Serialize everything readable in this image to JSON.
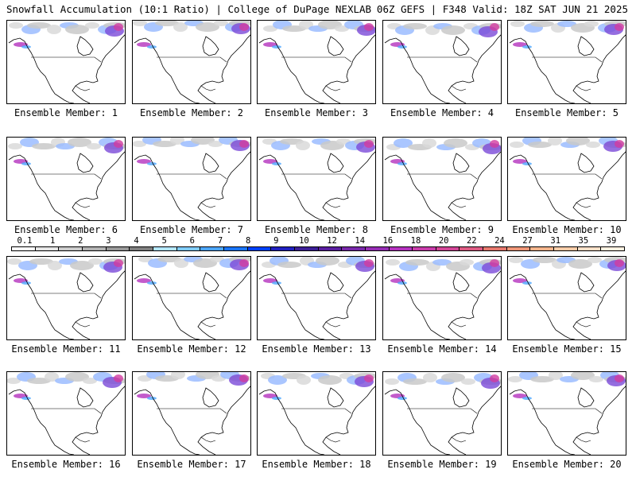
{
  "header": {
    "left": "Snowfall Accumulation (10:1 Ratio) | College of DuPage NEXLAB",
    "right": "06Z GEFS | F348 Valid: 18Z SAT JUN 21 2025"
  },
  "panels": [
    {
      "label": "Ensemble Member: 1"
    },
    {
      "label": "Ensemble Member: 2"
    },
    {
      "label": "Ensemble Member: 3"
    },
    {
      "label": "Ensemble Member: 4"
    },
    {
      "label": "Ensemble Member: 5"
    },
    {
      "label": "Ensemble Member: 6"
    },
    {
      "label": "Ensemble Member: 7"
    },
    {
      "label": "Ensemble Member: 8"
    },
    {
      "label": "Ensemble Member: 9"
    },
    {
      "label": "Ensemble Member: 10"
    },
    {
      "label": "Ensemble Member: 11"
    },
    {
      "label": "Ensemble Member: 12"
    },
    {
      "label": "Ensemble Member: 13"
    },
    {
      "label": "Ensemble Member: 14"
    },
    {
      "label": "Ensemble Member: 15"
    },
    {
      "label": "Ensemble Member: 16"
    },
    {
      "label": "Ensemble Member: 17"
    },
    {
      "label": "Ensemble Member: 18"
    },
    {
      "label": "Ensemble Member: 19"
    },
    {
      "label": "Ensemble Member: 20"
    }
  ],
  "colorbar": {
    "ticks": [
      "0.1",
      "1",
      "2",
      "3",
      "4",
      "5",
      "6",
      "7",
      "8",
      "9",
      "10",
      "12",
      "14",
      "16",
      "18",
      "20",
      "22",
      "24",
      "27",
      "31",
      "35",
      "39"
    ],
    "colors": [
      "#ffffff",
      "#e6e6e6",
      "#cccccc",
      "#b3b3b3",
      "#999999",
      "#808080",
      "#b3e6ff",
      "#80ccff",
      "#4da6ff",
      "#1a75ff",
      "#0040ff",
      "#2020c0",
      "#3c1e96",
      "#5a1ea0",
      "#7828aa",
      "#962db4",
      "#b432be",
      "#c83caa",
      "#d24696",
      "#dc5a82",
      "#e6786e",
      "#ee9678",
      "#f4b48c",
      "#f8cca8",
      "#fce0c8",
      "#fef0e0"
    ]
  }
}
